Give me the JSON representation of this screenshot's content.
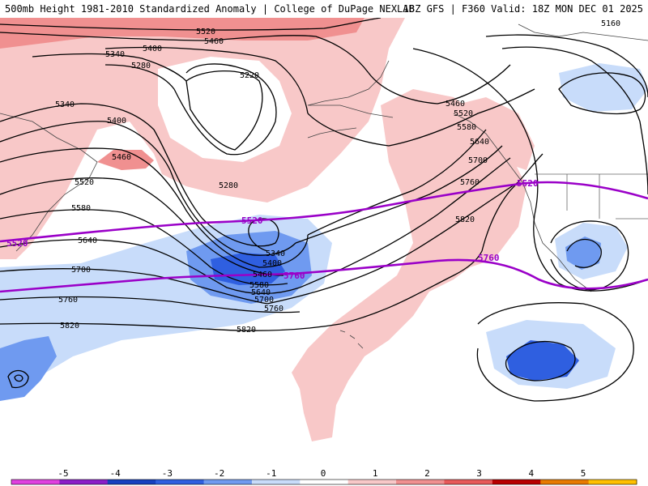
{
  "header": {
    "title": "500mb Height 1981-2010 Standardized Anomaly | College of DuPage NEXLAB",
    "run_info": "18Z GFS | F360 Valid: 18Z MON DEC 01 2025"
  },
  "map": {
    "contour_labels": [
      {
        "label": "5520",
        "name": "contour-label-5520-north"
      },
      {
        "label": "5460",
        "name": "contour-label-5460-north"
      },
      {
        "label": "5400",
        "name": "contour-label-5400-north"
      },
      {
        "label": "5340",
        "name": "contour-label-5340-nw"
      },
      {
        "label": "5280",
        "name": "contour-label-5280-north"
      },
      {
        "label": "5220",
        "name": "contour-label-5220"
      },
      {
        "label": "5340",
        "name": "contour-label-5340-west"
      },
      {
        "label": "5400",
        "name": "contour-label-5400-west"
      },
      {
        "label": "5460",
        "name": "contour-label-5460-west"
      },
      {
        "label": "5520",
        "name": "contour-label-5520-west"
      },
      {
        "label": "5580",
        "name": "contour-label-5580-west"
      },
      {
        "label": "5640",
        "name": "contour-label-5640-west"
      },
      {
        "label": "5700",
        "name": "contour-label-5700-west"
      },
      {
        "label": "5760",
        "name": "contour-label-5760-west"
      },
      {
        "label": "5820",
        "name": "contour-label-5820-west"
      },
      {
        "label": "5280",
        "name": "contour-label-5280-center"
      },
      {
        "label": "5340",
        "name": "contour-label-5340-low"
      },
      {
        "label": "5400",
        "name": "contour-label-5400-low"
      },
      {
        "label": "5460",
        "name": "contour-label-5460-low"
      },
      {
        "label": "5580",
        "name": "contour-label-5580-low"
      },
      {
        "label": "5640",
        "name": "contour-label-5640-low"
      },
      {
        "label": "5700",
        "name": "contour-label-5700-low"
      },
      {
        "label": "5760",
        "name": "contour-label-5760-low"
      },
      {
        "label": "5820",
        "name": "contour-label-5820-center"
      },
      {
        "label": "5460",
        "name": "contour-label-5460-east"
      },
      {
        "label": "5520",
        "name": "contour-label-5520-east"
      },
      {
        "label": "5580",
        "name": "contour-label-5580-east"
      },
      {
        "label": "5640",
        "name": "contour-label-5640-east"
      },
      {
        "label": "5700",
        "name": "contour-label-5700-east"
      },
      {
        "label": "5760",
        "name": "contour-label-5760-east"
      },
      {
        "label": "5820",
        "name": "contour-label-5820-east"
      },
      {
        "label": "5160",
        "name": "contour-label-5160"
      }
    ],
    "highlight_labels": [
      {
        "label": "5520",
        "name": "highlight-label-5520-west"
      },
      {
        "label": "5520",
        "name": "highlight-label-5520-center"
      },
      {
        "label": "5760",
        "name": "highlight-label-5760-center"
      },
      {
        "label": "5520",
        "name": "highlight-label-5520-east"
      },
      {
        "label": "5760",
        "name": "highlight-label-5760-east"
      }
    ]
  },
  "legend": {
    "ticks": [
      "-5",
      "-4",
      "-3",
      "-2",
      "-1",
      "0",
      "1",
      "2",
      "3",
      "4",
      "5"
    ],
    "colors": [
      "#e040e0",
      "#8a1ec8",
      "#1640c0",
      "#2f5fe0",
      "#6f9af0",
      "#c8dcfa",
      "#ffffff",
      "#f8c8c8",
      "#f09090",
      "#e85a5a",
      "#b80000",
      "#e87a00",
      "#ffc000"
    ]
  }
}
